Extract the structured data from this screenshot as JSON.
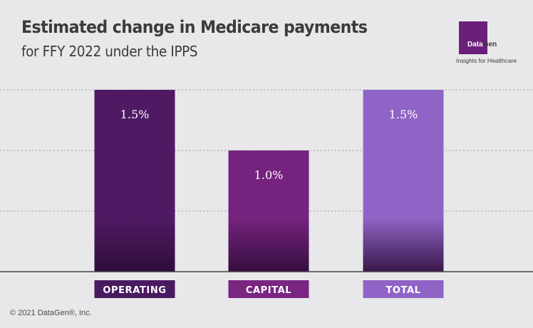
{
  "header": {
    "title": "Estimated change in Medicare payments",
    "subtitle": "for FFY 2022 under the IPPS"
  },
  "logo": {
    "name_part1": "Data",
    "name_part2": "Gen",
    "tagline": "Insights for Healthcare"
  },
  "footer": {
    "copyright": "© 2021 DataGen®, Inc."
  },
  "colors": {
    "operating": "#4f1a63",
    "capital": "#76237f",
    "total": "#8f64c6",
    "label_operating": "#4a1a60",
    "label_capital": "#7a2582",
    "label_total": "#8f64c6"
  },
  "chart_data": {
    "type": "bar",
    "categories": [
      "OPERATING",
      "CAPITAL",
      "TOTAL"
    ],
    "values": [
      1.5,
      1.0,
      1.5
    ],
    "data_labels": [
      "1.5%",
      "1.0%",
      "1.5%"
    ],
    "title": "Estimated change in Medicare payments",
    "subtitle": "for FFY 2022 under the IPPS",
    "xlabel": "",
    "ylabel": "",
    "ylim": [
      0,
      1.5
    ],
    "grid": true
  }
}
